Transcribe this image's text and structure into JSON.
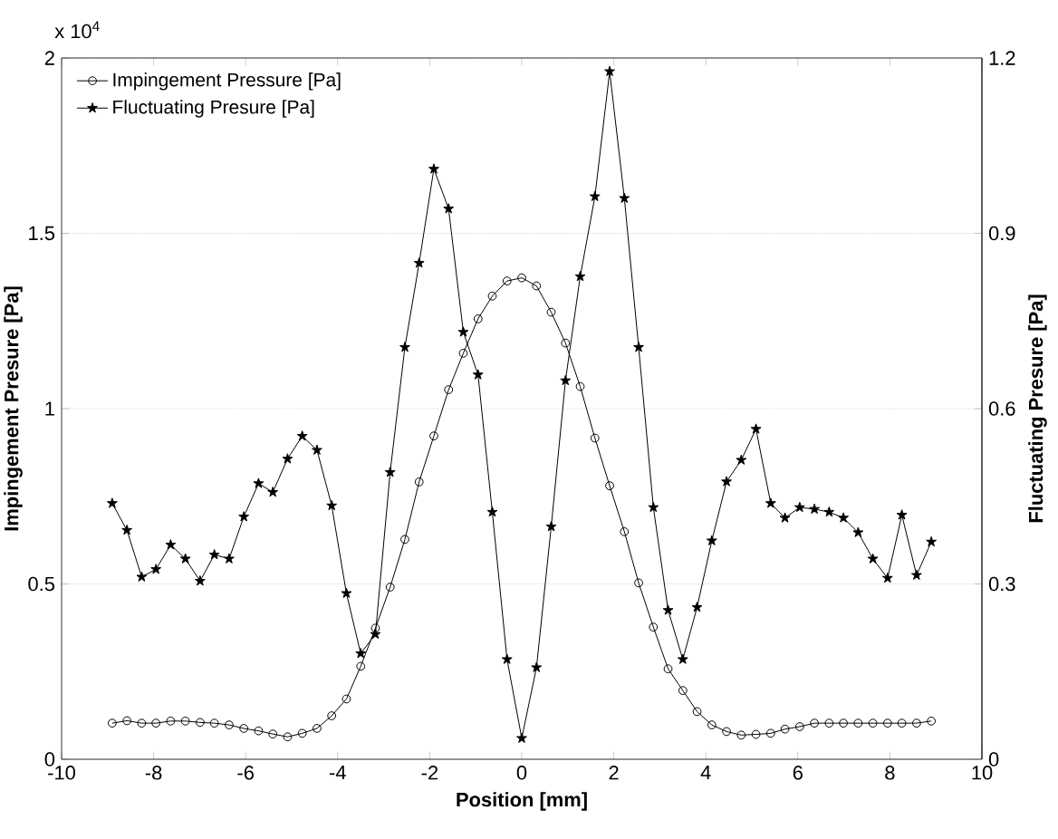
{
  "chart_data": {
    "type": "line",
    "xlabel": "Position [mm]",
    "ylabel": "Impingement Presure [Pa]",
    "y2label": "Fluctuating Presure [Pa]",
    "annotations": [
      "x 10$^{4}$"
    ],
    "x": [
      -8.9,
      -8.58,
      -8.26,
      -7.95,
      -7.63,
      -7.31,
      -6.99,
      -6.68,
      -6.36,
      -6.04,
      -5.72,
      -5.41,
      -5.09,
      -4.77,
      -4.45,
      -4.13,
      -3.81,
      -3.5,
      -3.18,
      -2.86,
      -2.54,
      -2.23,
      -1.91,
      -1.59,
      -1.27,
      -0.95,
      -0.64,
      -0.32,
      0,
      0.32,
      0.64,
      0.95,
      1.27,
      1.59,
      1.91,
      2.23,
      2.54,
      2.86,
      3.18,
      3.5,
      3.81,
      4.13,
      4.45,
      4.77,
      5.09,
      5.41,
      5.72,
      6.04,
      6.36,
      6.68,
      6.99,
      7.31,
      7.63,
      7.95,
      8.26,
      8.58,
      8.9
    ],
    "series": [
      {
        "name": "Impingement Pressure [Pa]",
        "color": "#000000",
        "marker": "circle",
        "values": [
          0.103,
          0.11,
          0.103,
          0.103,
          0.109,
          0.109,
          0.105,
          0.103,
          0.098,
          0.088,
          0.081,
          0.072,
          0.064,
          0.074,
          0.088,
          0.124,
          0.172,
          0.265,
          0.374,
          0.491,
          0.627,
          0.791,
          0.922,
          1.054,
          1.158,
          1.256,
          1.321,
          1.364,
          1.373,
          1.35,
          1.275,
          1.187,
          1.063,
          0.916,
          0.78,
          0.649,
          0.503,
          0.377,
          0.258,
          0.196,
          0.136,
          0.098,
          0.079,
          0.069,
          0.071,
          0.074,
          0.086,
          0.093,
          0.103,
          0.103,
          0.103,
          0.103,
          0.103,
          0.103,
          0.103,
          0.103,
          0.109
        ]
      },
      {
        "name": "Fluctuating Presure [Pa]",
        "color": "#000000",
        "marker": "star",
        "axis": "y2",
        "values": [
          0.438,
          0.392,
          0.312,
          0.325,
          0.367,
          0.343,
          0.305,
          0.35,
          0.343,
          0.415,
          0.472,
          0.457,
          0.514,
          0.553,
          0.529,
          0.434,
          0.284,
          0.181,
          0.214,
          0.491,
          0.705,
          0.849,
          1.01,
          0.942,
          0.731,
          0.658,
          0.423,
          0.171,
          0.036,
          0.157,
          0.398,
          0.648,
          0.826,
          0.963,
          1.177,
          0.96,
          0.705,
          0.431,
          0.255,
          0.171,
          0.26,
          0.374,
          0.475,
          0.512,
          0.565,
          0.438,
          0.413,
          0.431,
          0.428,
          0.423,
          0.413,
          0.388,
          0.343,
          0.31,
          0.418,
          0.315,
          0.372
        ]
      }
    ],
    "xlim": [
      -10,
      10
    ],
    "xticks": [
      -10,
      -8,
      -6,
      -4,
      -2,
      0,
      2,
      4,
      6,
      8,
      10
    ],
    "ylim": [
      0,
      2
    ],
    "yticks": [
      0,
      0.5,
      1,
      1.5,
      2
    ],
    "y2lim": [
      0,
      1.2
    ],
    "y2ticks": [
      0,
      0.3,
      0.6,
      0.9,
      1.2
    ],
    "grid": "y",
    "legend": "top left",
    "line_style": "solid"
  }
}
